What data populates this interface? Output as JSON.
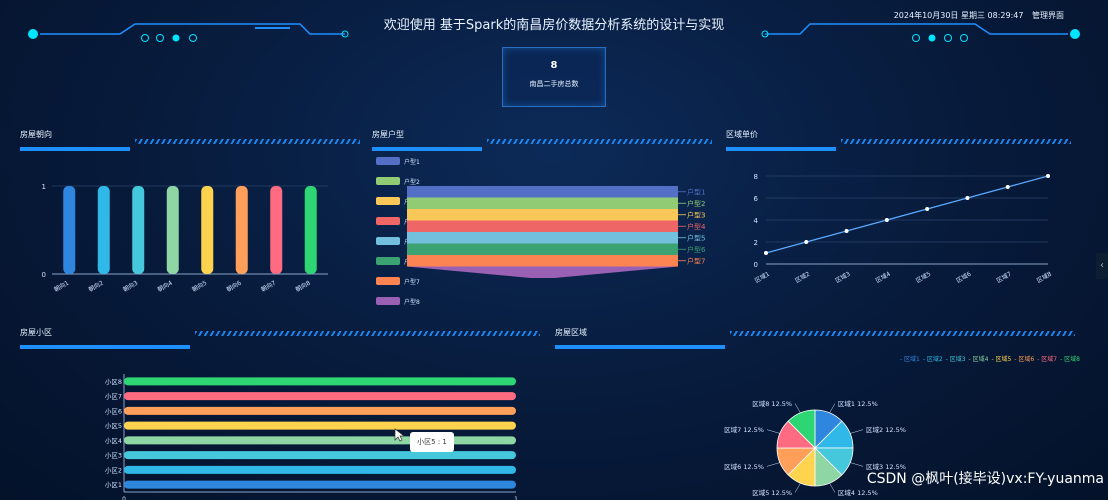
{
  "header": {
    "title": "欢迎使用 基于Spark的南昌房价数据分析系统的设计与实现",
    "datetime": "2024年10月30日 星期三 08:29:47",
    "admin_link": "管理界面"
  },
  "kpi": {
    "value": "8",
    "label": "南昌二手房总数"
  },
  "panels": {
    "orientation": "房屋朝向",
    "layout": "房屋户型",
    "price": "区域单价",
    "community": "房屋小区",
    "region": "房屋区域"
  },
  "chart_data": [
    {
      "type": "bar",
      "categories": [
        "朝向1",
        "朝向2",
        "朝向3",
        "朝向4",
        "朝向5",
        "朝向6",
        "朝向7",
        "朝向8"
      ],
      "values": [
        1,
        1,
        1,
        1,
        1,
        1,
        1,
        1
      ],
      "ylim": [
        0,
        1
      ],
      "yticks": [
        "0",
        "1"
      ],
      "colors": [
        "#2e86de",
        "#2fb8e8",
        "#45c7dc",
        "#8ed6a3",
        "#ffd34e",
        "#ff9f5a",
        "#ff6b81",
        "#2ed573"
      ]
    },
    {
      "type": "funnel",
      "categories": [
        "户型1",
        "户型2",
        "户型3",
        "户型4",
        "户型5",
        "户型6",
        "户型7",
        "户型8"
      ],
      "values": [
        1,
        1,
        1,
        1,
        1,
        1,
        1,
        1
      ],
      "colors": [
        "#5470c6",
        "#91cc75",
        "#fac858",
        "#ee6666",
        "#73c0de",
        "#3ba272",
        "#fc8452",
        "#9a60b4"
      ]
    },
    {
      "type": "line",
      "categories": [
        "区域1",
        "区域2",
        "区域3",
        "区域4",
        "区域5",
        "区域6",
        "区域7",
        "区域8"
      ],
      "values": [
        1,
        2,
        3,
        4,
        5,
        6,
        7,
        8
      ],
      "ylim": [
        0,
        8
      ],
      "yticks": [
        "0",
        "2",
        "4",
        "6",
        "8"
      ]
    },
    {
      "type": "bar",
      "orientation": "horizontal",
      "categories": [
        "小区1",
        "小区2",
        "小区3",
        "小区4",
        "小区5",
        "小区6",
        "小区7",
        "小区8"
      ],
      "values": [
        1,
        1,
        1,
        1,
        1,
        1,
        1,
        1
      ],
      "xlim": [
        0,
        1
      ],
      "xticks": [
        "0",
        "1"
      ],
      "colors": [
        "#2e86de",
        "#2fb8e8",
        "#45c7dc",
        "#8ed6a3",
        "#ffd34e",
        "#ff9f5a",
        "#ff6b81",
        "#2ed573"
      ]
    },
    {
      "type": "pie",
      "categories": [
        "区域1",
        "区域2",
        "区域3",
        "区域4",
        "区域5",
        "区域6",
        "区域7",
        "区域8"
      ],
      "values": [
        12.5,
        12.5,
        12.5,
        12.5,
        12.5,
        12.5,
        12.5,
        12.5
      ],
      "labels": [
        "区域1 12.5%",
        "区域2 12.5%",
        "区域3 12.5%",
        "区域4 12.5%",
        "区域5 12.5%",
        "区域6 12.5%",
        "区域7 12.5%",
        "区域8 12.5%"
      ],
      "legend": "top-right",
      "colors": [
        "#2e86de",
        "#2fb8e8",
        "#45c7dc",
        "#8ed6a3",
        "#ffd34e",
        "#ff9f5a",
        "#ff6b81",
        "#2ed573"
      ]
    }
  ],
  "tooltip": "小区5 : 1",
  "watermark": "CSDN @枫叶(接毕设)vx:FY-yuanma",
  "icons": {
    "side": "chevron-left-icon",
    "cursor": "cursor-icon"
  }
}
